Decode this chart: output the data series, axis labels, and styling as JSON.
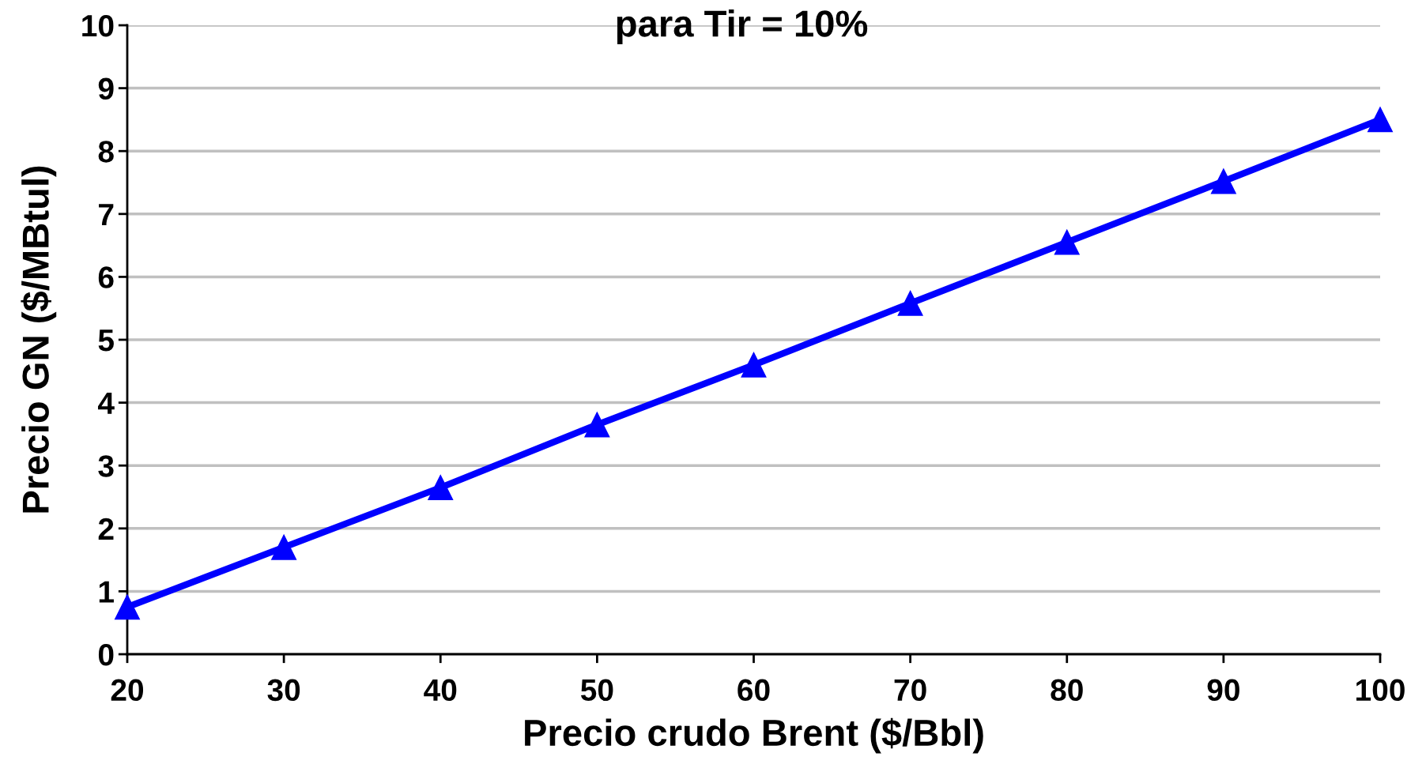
{
  "chart_data": {
    "type": "line",
    "title": "para Tir = 10%",
    "xlabel": "Precio crudo Brent ($/Bbl)",
    "ylabel": "Precio GN ($/MBtul)",
    "x": [
      20,
      30,
      40,
      50,
      60,
      70,
      80,
      90,
      100
    ],
    "series": [
      {
        "color": "#0000ff",
        "values": [
          0.75,
          1.7,
          2.65,
          3.65,
          4.6,
          5.58,
          6.55,
          7.52,
          8.5
        ]
      }
    ],
    "xlim": [
      20,
      100
    ],
    "xticks": [
      20,
      30,
      40,
      50,
      60,
      70,
      80,
      90,
      100
    ],
    "ylim": [
      0,
      10
    ],
    "yticks": [
      0,
      1,
      2,
      3,
      4,
      5,
      6,
      7,
      8,
      9,
      10
    ],
    "grid": "y",
    "legend": false,
    "marker": "triangle",
    "line_style": "solid"
  }
}
